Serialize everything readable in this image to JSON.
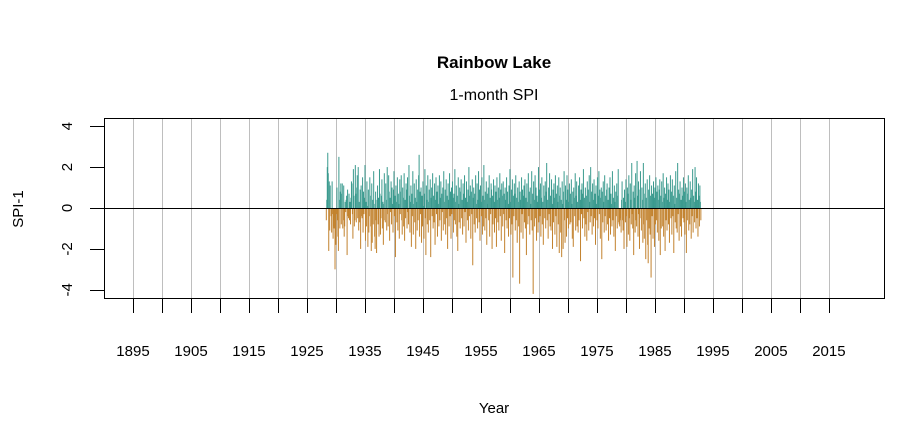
{
  "chart_data": {
    "type": "bar",
    "title": "Rainbow Lake",
    "subtitle": "1-month SPI",
    "xlabel": "Year",
    "ylabel": "SPI-1",
    "xlim": [
      1890,
      2024.5
    ],
    "ylim": [
      -4.4,
      4.4
    ],
    "x_ticks": [
      1895,
      1900,
      1905,
      1910,
      1915,
      1920,
      1925,
      1930,
      1935,
      1940,
      1945,
      1950,
      1955,
      1960,
      1965,
      1970,
      1975,
      1980,
      1985,
      1990,
      1995,
      2000,
      2005,
      2010,
      2015
    ],
    "x_tick_labels": [
      "1895",
      "1905",
      "1915",
      "1925",
      "1935",
      "1945",
      "1955",
      "1965",
      "1975",
      "1985",
      "1995",
      "2005",
      "2015"
    ],
    "y_ticks": [
      4,
      2,
      0,
      -2,
      -4
    ],
    "y_tick_labels": [
      "4",
      "2",
      "0",
      "-2",
      "-4"
    ],
    "grid": "vertical",
    "colors": {
      "positive": "#3a9a8e",
      "negative": "#c2822e",
      "grid": "#bebebe",
      "zero_line": "#000000"
    },
    "series_start": "1928-04",
    "frequency": "monthly",
    "values": [
      -0.6,
      0.4,
      2.0,
      2.7,
      1.7,
      -2.1,
      1.3,
      -1.1,
      1.1,
      0.0,
      -0.4,
      -1.2,
      1.3,
      -0.3,
      -1.5,
      -0.9,
      -1.0,
      -0.5,
      -3.0,
      -0.5,
      -1.8,
      -0.3,
      1.0,
      -0.6,
      -1.4,
      -2.1,
      2.5,
      0.4,
      -1.0,
      0.8,
      1.2,
      -0.8,
      0.7,
      1.2,
      -1.0,
      -0.6,
      1.1,
      -1.4,
      -0.9,
      0.3,
      -0.2,
      0.4,
      0.6,
      -2.3,
      0.9,
      -0.4,
      -0.5,
      0.7,
      -0.6,
      0.3,
      -0.8,
      0.5,
      1.3,
      1.2,
      -0.3,
      -1.5,
      1.9,
      0.6,
      -0.9,
      -0.6,
      2.1,
      0.7,
      -0.7,
      1.0,
      1.6,
      -0.5,
      2.0,
      -1.1,
      0.3,
      -0.7,
      0.9,
      -2.0,
      1.1,
      -0.4,
      -0.5,
      1.5,
      -1.2,
      0.8,
      -0.3,
      0.5,
      2.1,
      -1.6,
      0.3,
      -0.9,
      1.3,
      0.1,
      -1.9,
      0.9,
      -1.2,
      -0.4,
      1.5,
      0.6,
      -0.9,
      -2.1,
      1.2,
      -1.7,
      0.4,
      -0.8,
      1.8,
      0.2,
      -1.4,
      -2.0,
      0.8,
      -0.6,
      -2.2,
      0.4,
      1.1,
      -0.8,
      0.5,
      -1.4,
      1.9,
      0.7,
      -1.3,
      -0.5,
      0.6,
      1.4,
      -1.0,
      0.3,
      -1.8,
      0.2,
      1.7,
      -0.6,
      -0.7,
      1.2,
      0.4,
      -1.1,
      2.0,
      -0.3,
      -0.9,
      1.6,
      0.8,
      -1.6,
      0.5,
      -0.2,
      1.3,
      -0.8,
      1.0,
      0.2,
      -1.2,
      0.9,
      1.8,
      -0.4,
      0.6,
      -2.4,
      1.1,
      0.3,
      -0.7,
      1.5,
      -1.1,
      0.7,
      0.2,
      -1.5,
      1.4,
      -0.3,
      0.8,
      1.6,
      -0.6,
      -1.3,
      1.0,
      0.5,
      -0.9,
      1.7,
      -1.6,
      0.4,
      -0.5,
      1.2,
      0.9,
      -1.0,
      1.5,
      -0.2,
      -0.8,
      2.1,
      0.6,
      -1.2,
      0.3,
      1.1,
      -1.9,
      0.7,
      -0.4,
      1.8,
      -1.3,
      0.2,
      1.2,
      -0.7,
      0.5,
      -2.0,
      1.4,
      0.3,
      -1.1,
      0.9,
      -0.6,
      1.6,
      2.6,
      -1.4,
      0.8,
      -0.3,
      1.0,
      -1.7,
      0.6,
      -0.9,
      1.3,
      0.1,
      -1.5,
      0.7,
      1.9,
      -0.5,
      -2.3,
      1.1,
      0.4,
      -0.8,
      1.6,
      -1.2,
      0.3,
      0.9,
      -0.6,
      1.4,
      -2.4,
      0.5,
      1.0,
      -0.4,
      1.7,
      -1.0,
      0.6,
      -0.7,
      1.2,
      -1.8,
      0.4,
      1.5,
      -0.3,
      0.8,
      -1.4,
      1.1,
      0.2,
      -0.9,
      1.6,
      -0.6,
      0.5,
      1.3,
      -1.6,
      0.7,
      -0.2,
      1.0,
      -1.1,
      1.8,
      0.3,
      -0.8,
      0.9,
      -1.3,
      1.4,
      -0.5,
      0.6,
      -2.0,
      1.2,
      0.4,
      -0.9,
      1.7,
      -0.4,
      0.8,
      -1.5,
      1.0,
      -0.3,
      1.3,
      0.5,
      -1.2,
      0.7,
      -0.6,
      1.9,
      -0.8,
      0.3,
      1.1,
      -1.4,
      0.6,
      -2.1,
      1.5,
      0.2,
      -0.7,
      1.0,
      -1.0,
      0.8,
      1.4,
      -0.5,
      0.4,
      -1.3,
      1.2,
      0.7,
      -0.9,
      1.6,
      -0.2,
      0.5,
      -1.7,
      1.3,
      0.3,
      -0.6,
      0.9,
      -1.1,
      2.0,
      -0.4,
      0.6,
      1.1,
      -1.5,
      0.8,
      -0.3,
      1.4,
      -2.8,
      0.5,
      1.0,
      -0.8,
      0.7,
      -1.2,
      1.6,
      0.2,
      -0.5,
      1.2,
      -1.0,
      0.4,
      1.8,
      -0.7,
      0.9,
      -1.6,
      1.1,
      0.3,
      -0.4,
      1.5,
      -1.3,
      0.6,
      -0.9,
      2.1,
      0.4,
      -1.1,
      0.8,
      -0.5,
      1.3,
      -1.8,
      0.7,
      0.2,
      1.0,
      -0.6,
      1.6,
      -1.4,
      0.5,
      -0.3,
      1.2,
      0.9,
      -2.0,
      0.6,
      -0.8,
      1.4,
      0.3,
      -1.2,
      1.1,
      -0.5,
      0.8,
      -1.9,
      1.5,
      0.4,
      -0.7,
      1.0,
      -1.1,
      0.5,
      1.7,
      -0.4,
      0.9,
      -1.6,
      1.2,
      0.6,
      -0.9,
      1.3,
      -0.3,
      0.7,
      -2.2,
      1.0,
      0.4,
      -0.6,
      1.5,
      -1.0,
      0.8,
      0.2,
      -1.4,
      1.1,
      -0.5,
      1.9,
      0.3,
      -1.3,
      0.9,
      -0.8,
      1.4,
      -3.4,
      0.6,
      -0.4,
      1.2,
      0.7,
      -1.1,
      1.6,
      -0.6,
      0.5,
      -1.7,
      1.0,
      0.3,
      -0.9,
      1.3,
      -3.7,
      0.8,
      0.4,
      -1.2,
      1.5,
      -0.3,
      0.9,
      -1.5,
      0.6,
      1.1,
      -0.7,
      1.4,
      -1.0,
      0.5,
      -2.3,
      1.2,
      0.3,
      -0.8,
      1.7,
      -0.4,
      0.8,
      -1.3,
      1.0,
      0.2,
      -0.6,
      1.8,
      -1.1,
      0.7,
      -4.2,
      1.3,
      0.4,
      -0.9,
      1.6,
      -0.5,
      1.0,
      -1.6,
      0.6,
      0.3,
      -1.2,
      2.0,
      -0.7,
      0.9,
      -0.4,
      1.2,
      -1.4,
      0.5,
      1.5,
      -0.8,
      0.3,
      -1.8,
      1.1,
      0.6,
      -0.5,
      1.3,
      -1.0,
      0.8,
      2.2,
      -0.6,
      0.4,
      -1.5,
      1.0,
      -0.3,
      1.7,
      -0.9,
      0.6,
      -1.1,
      1.4,
      0.2,
      -2.0,
      0.9,
      -0.7,
      1.2,
      0.5,
      -1.3,
      1.6,
      -0.4,
      0.7,
      -1.9,
      1.1,
      0.3,
      -0.8,
      1.5,
      -2.2,
      0.6,
      1.0,
      -1.2,
      0.4,
      -2.4,
      1.3,
      0.2,
      -2.0,
      0.8,
      1.8,
      -0.6,
      -1.7,
      1.1,
      0.4,
      -1.4,
      1.6,
      -0.5,
      0.9,
      -1.0,
      0.3,
      1.2,
      -0.8,
      0.7,
      -0.7,
      1.4,
      0.2,
      -1.5,
      0.8,
      -1.9,
      1.0,
      0.5,
      -0.4,
      1.7,
      -1.1,
      0.6,
      1.3,
      -0.9,
      0.3,
      -1.2,
      1.1,
      -0.6,
      1.5,
      0.4,
      -2.6,
      0.9,
      -0.3,
      1.2,
      -1.0,
      0.7,
      1.9,
      -0.5,
      0.5,
      -1.4,
      1.0,
      -0.8,
      0.6,
      -1.6,
      1.3,
      -0.2,
      0.9,
      -1.1,
      1.6,
      0.3,
      -0.7,
      2.0,
      -0.4,
      0.8,
      -1.3,
      1.2,
      0.4,
      -0.9,
      1.4,
      -0.5,
      0.7,
      -1.8,
      1.1,
      0.2,
      -0.6,
      1.5,
      -1.0,
      0.6,
      1.8,
      -0.3,
      0.9,
      -1.5,
      0.5,
      1.0,
      -2.5,
      0.8,
      -0.7,
      1.3,
      0.3,
      -1.2,
      1.6,
      -0.4,
      0.6,
      -1.1,
      0.9,
      1.2,
      -0.8,
      0.4,
      -1.6,
      1.0,
      -0.5,
      1.5,
      -1.3,
      0.7,
      0.2,
      -0.9,
      1.8,
      -0.6,
      0.5,
      -1.4,
      1.1,
      0.3,
      -2.1,
      0.8,
      -0.4,
      1.2,
      -1.0,
      0.6,
      1.9,
      -0.7,
      -0.8,
      -0.9,
      -0.6,
      -0.5,
      -1.2,
      0.4,
      1.3,
      -0.6,
      -1.1,
      0.5,
      -2.0,
      0.9,
      0.3,
      -0.7,
      1.4,
      -0.4,
      -1.9,
      1.0,
      0.7,
      -1.3,
      1.6,
      -0.5,
      -1.6,
      1.2,
      0.4,
      -0.8,
      2.2,
      -0.3,
      -1.0,
      0.8,
      -2.3,
      1.1,
      0.5,
      -1.2,
      1.7,
      -0.6,
      -0.9,
      2.3,
      0.6,
      -1.4,
      1.3,
      -0.3,
      -2.0,
      0.9,
      1.8,
      -0.5,
      -1.1,
      1.0,
      0.4,
      -1.7,
      2.2,
      -0.8,
      -1.5,
      0.7,
      1.2,
      -2.5,
      0.5,
      -0.6,
      1.4,
      -1.8,
      -2.7,
      0.9,
      -1.0,
      1.6,
      -1.3,
      0.6,
      -3.4,
      1.1,
      -0.4,
      0.7,
      -1.5,
      1.3,
      0.5,
      -1.9,
      1.0,
      -0.8,
      1.5,
      -0.6,
      0.8,
      -1.2,
      1.1,
      0.4,
      -1.6,
      0.9,
      1.4,
      -2.3,
      0.6,
      -1.0,
      1.3,
      0.3,
      -0.9,
      1.7,
      -1.4,
      0.5,
      1.0,
      -2.1,
      0.7,
      -0.6,
      1.5,
      -1.1,
      0.4,
      1.2,
      -0.8,
      0.9,
      -1.7,
      0.3,
      1.6,
      -0.5,
      0.8,
      -1.3,
      1.4,
      -0.4,
      0.6,
      -2.2,
      1.1,
      0.2,
      -0.7,
      1.8,
      -1.0,
      0.5,
      -1.2,
      2.2,
      -0.3,
      0.9,
      -1.6,
      0.7,
      1.3,
      -0.9,
      0.4,
      -1.4,
      1.0,
      0.6,
      -0.5,
      1.5,
      -0.7,
      0.8,
      -1.3,
      1.2,
      0.3,
      -2.2,
      1.0,
      -0.6,
      0.7,
      1.6,
      -1.1,
      0.4,
      -0.8,
      1.3,
      0.5,
      -1.5,
      0.9,
      -0.4,
      1.9,
      -1.2,
      0.6,
      0.3,
      -0.7,
      2.0,
      0.8,
      -1.0,
      1.5,
      -0.5,
      0.4,
      -1.4,
      1.2,
      0.6,
      -0.9,
      1.1,
      0.3,
      -0.6
    ]
  }
}
